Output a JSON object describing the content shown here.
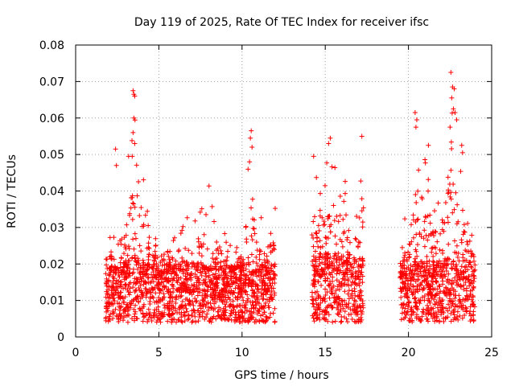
{
  "chart_data": {
    "type": "scatter",
    "marker": "+",
    "color": "#ff0000",
    "title": "Day 119 of 2025, Rate Of TEC Index for receiver ifsc",
    "xlabel": "GPS time / hours",
    "ylabel": "ROTI / TECUs",
    "xlim": [
      0,
      25
    ],
    "ylim": [
      0,
      0.08
    ],
    "xticks": [
      0,
      5,
      10,
      15,
      20,
      25
    ],
    "yticks": [
      0,
      0.01,
      0.02,
      0.03,
      0.04,
      0.05,
      0.06,
      0.07,
      0.08
    ],
    "xtick_labels": [
      "0",
      "5",
      "10",
      "15",
      "20",
      "25"
    ],
    "ytick_labels": [
      "0",
      "0.01",
      "0.02",
      "0.03",
      "0.04",
      "0.05",
      "0.06",
      "0.07",
      "0.08"
    ],
    "grid": true,
    "segments": [
      {
        "x_start": 1.8,
        "x_end": 12.0
      },
      {
        "x_start": 14.2,
        "x_end": 17.3
      },
      {
        "x_start": 19.5,
        "x_end": 24.0
      }
    ],
    "bands": [
      [
        1.8,
        0.012,
        0.03
      ],
      [
        2.5,
        0.012,
        0.034
      ],
      [
        3.0,
        0.013,
        0.04
      ],
      [
        3.5,
        0.014,
        0.067
      ],
      [
        4.0,
        0.013,
        0.05
      ],
      [
        4.5,
        0.012,
        0.03
      ],
      [
        5.0,
        0.012,
        0.03
      ],
      [
        5.5,
        0.012,
        0.031
      ],
      [
        6.0,
        0.012,
        0.032
      ],
      [
        6.5,
        0.012,
        0.033
      ],
      [
        7.0,
        0.012,
        0.034
      ],
      [
        7.5,
        0.012,
        0.036
      ],
      [
        8.0,
        0.012,
        0.044
      ],
      [
        8.5,
        0.012,
        0.038
      ],
      [
        9.0,
        0.011,
        0.028
      ],
      [
        9.5,
        0.012,
        0.025
      ],
      [
        10.0,
        0.012,
        0.03
      ],
      [
        10.5,
        0.013,
        0.056
      ],
      [
        11.0,
        0.012,
        0.035
      ],
      [
        11.5,
        0.012,
        0.03
      ],
      [
        12.0,
        0.012,
        0.041
      ],
      [
        14.2,
        0.014,
        0.049
      ],
      [
        14.8,
        0.015,
        0.04
      ],
      [
        15.3,
        0.015,
        0.054
      ],
      [
        15.8,
        0.015,
        0.047
      ],
      [
        16.3,
        0.014,
        0.042
      ],
      [
        16.8,
        0.014,
        0.03
      ],
      [
        17.2,
        0.014,
        0.055
      ],
      [
        19.5,
        0.013,
        0.029
      ],
      [
        20.0,
        0.013,
        0.035
      ],
      [
        20.5,
        0.013,
        0.061
      ],
      [
        21.0,
        0.013,
        0.052
      ],
      [
        21.5,
        0.013,
        0.04
      ],
      [
        22.0,
        0.013,
        0.045
      ],
      [
        22.5,
        0.014,
        0.072
      ],
      [
        23.0,
        0.013,
        0.05
      ],
      [
        23.5,
        0.013,
        0.035
      ],
      [
        24.0,
        0.012,
        0.028
      ]
    ],
    "spikes": [
      [
        3.45,
        0.0675
      ],
      [
        3.5,
        0.0665
      ],
      [
        3.55,
        0.066
      ],
      [
        3.5,
        0.06
      ],
      [
        3.45,
        0.056
      ],
      [
        3.55,
        0.053
      ],
      [
        3.4,
        0.0495
      ],
      [
        2.4,
        0.0515
      ],
      [
        2.45,
        0.047
      ],
      [
        10.55,
        0.0565
      ],
      [
        10.5,
        0.0545
      ],
      [
        10.6,
        0.052
      ],
      [
        10.45,
        0.048
      ],
      [
        15.3,
        0.0545
      ],
      [
        15.2,
        0.053
      ],
      [
        17.2,
        0.055
      ],
      [
        14.3,
        0.0495
      ],
      [
        20.4,
        0.0615
      ],
      [
        20.5,
        0.0595
      ],
      [
        20.45,
        0.0575
      ],
      [
        21.2,
        0.0525
      ],
      [
        22.55,
        0.0725
      ],
      [
        22.65,
        0.0685
      ],
      [
        22.75,
        0.068
      ],
      [
        22.6,
        0.0655
      ],
      [
        22.7,
        0.0625
      ],
      [
        22.8,
        0.0615
      ],
      [
        22.9,
        0.0595
      ],
      [
        22.5,
        0.0575
      ],
      [
        23.2,
        0.0525
      ],
      [
        23.25,
        0.0505
      ]
    ]
  }
}
